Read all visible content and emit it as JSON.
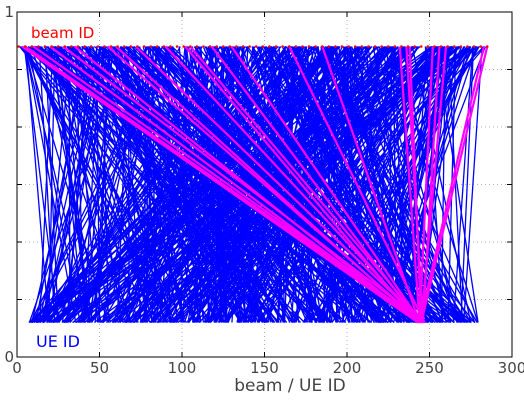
{
  "chart_data": {
    "type": "line",
    "title": "",
    "xlabel": "beam / UE ID",
    "ylabel": "",
    "xlim": [
      0,
      300
    ],
    "ylim": [
      0,
      1
    ],
    "xticks": [
      "0",
      "50",
      "100",
      "150",
      "200",
      "250",
      "300"
    ],
    "yticks": [
      "0",
      "",
      "",
      "",
      "",
      "",
      "1"
    ],
    "grid": true,
    "annotations": {
      "beam_label": "beam ID",
      "ue_label": "UE ID"
    },
    "beam_level": 0.9,
    "ue_level": 0.1,
    "beam_id_range": [
      1,
      285
    ],
    "ue_id_range": [
      7,
      280
    ],
    "colors": {
      "connections": "#0000ff",
      "highlight": "#ff00ff",
      "beam_markers": "#ff0000",
      "beam_text": "#ff0000",
      "ue_text": "#0000ff",
      "grid": "#b0b0b0",
      "axes": "#000000"
    },
    "highlight_links": [
      {
        "beam": 3,
        "ue": 243
      },
      {
        "beam": 5,
        "ue": 245
      },
      {
        "beam": 10,
        "ue": 246
      },
      {
        "beam": 20,
        "ue": 244
      },
      {
        "beam": 28,
        "ue": 247
      },
      {
        "beam": 35,
        "ue": 243
      },
      {
        "beam": 55,
        "ue": 245
      },
      {
        "beam": 60,
        "ue": 244
      },
      {
        "beam": 72,
        "ue": 246
      },
      {
        "beam": 90,
        "ue": 245
      },
      {
        "beam": 102,
        "ue": 243
      },
      {
        "beam": 105,
        "ue": 246
      },
      {
        "beam": 118,
        "ue": 244
      },
      {
        "beam": 130,
        "ue": 245
      },
      {
        "beam": 165,
        "ue": 247
      },
      {
        "beam": 185,
        "ue": 244
      },
      {
        "beam": 232,
        "ue": 244
      },
      {
        "beam": 236,
        "ue": 246
      },
      {
        "beam": 238,
        "ue": 245
      },
      {
        "beam": 252,
        "ue": 244
      },
      {
        "beam": 256,
        "ue": 246
      },
      {
        "beam": 260,
        "ue": 245
      },
      {
        "beam": 283,
        "ue": 244
      },
      {
        "beam": 285,
        "ue": 245
      }
    ]
  }
}
